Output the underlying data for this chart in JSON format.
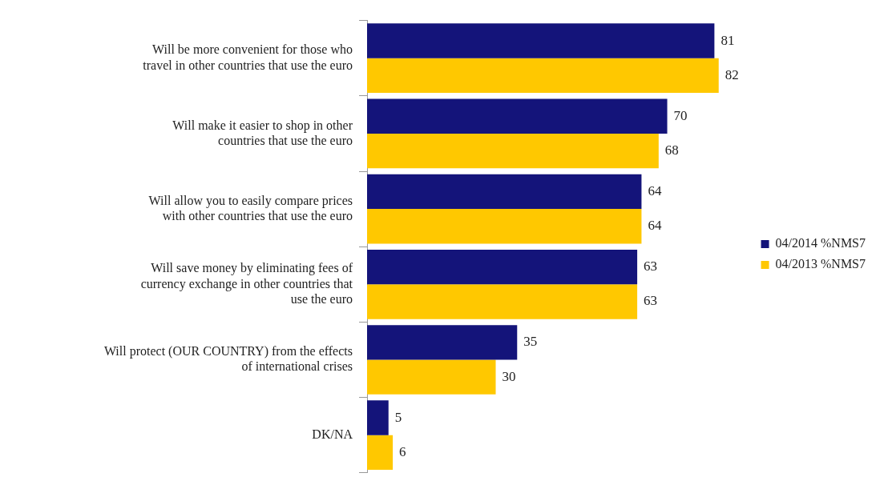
{
  "chart_data": {
    "type": "bar",
    "orientation": "horizontal",
    "categories": [
      "Will be more convenient for those who travel in other countries that use the euro",
      "Will make it easier to shop in other countries that use the euro",
      "Will allow you to easily compare prices with other countries that use the euro",
      "Will save money by eliminating fees of currency exchange in other countries that use the euro",
      "Will protect (OUR COUNTRY) from the effects of international crises",
      "DK/NA"
    ],
    "series": [
      {
        "name": "04/2014 %NMS7",
        "color": "#14147a",
        "values": [
          81,
          70,
          64,
          63,
          35,
          5
        ]
      },
      {
        "name": "04/2013 %NMS7",
        "color": "#ffc800",
        "values": [
          82,
          68,
          64,
          63,
          30,
          6
        ]
      }
    ],
    "data_labels": true,
    "legend": "right",
    "grid": false
  }
}
